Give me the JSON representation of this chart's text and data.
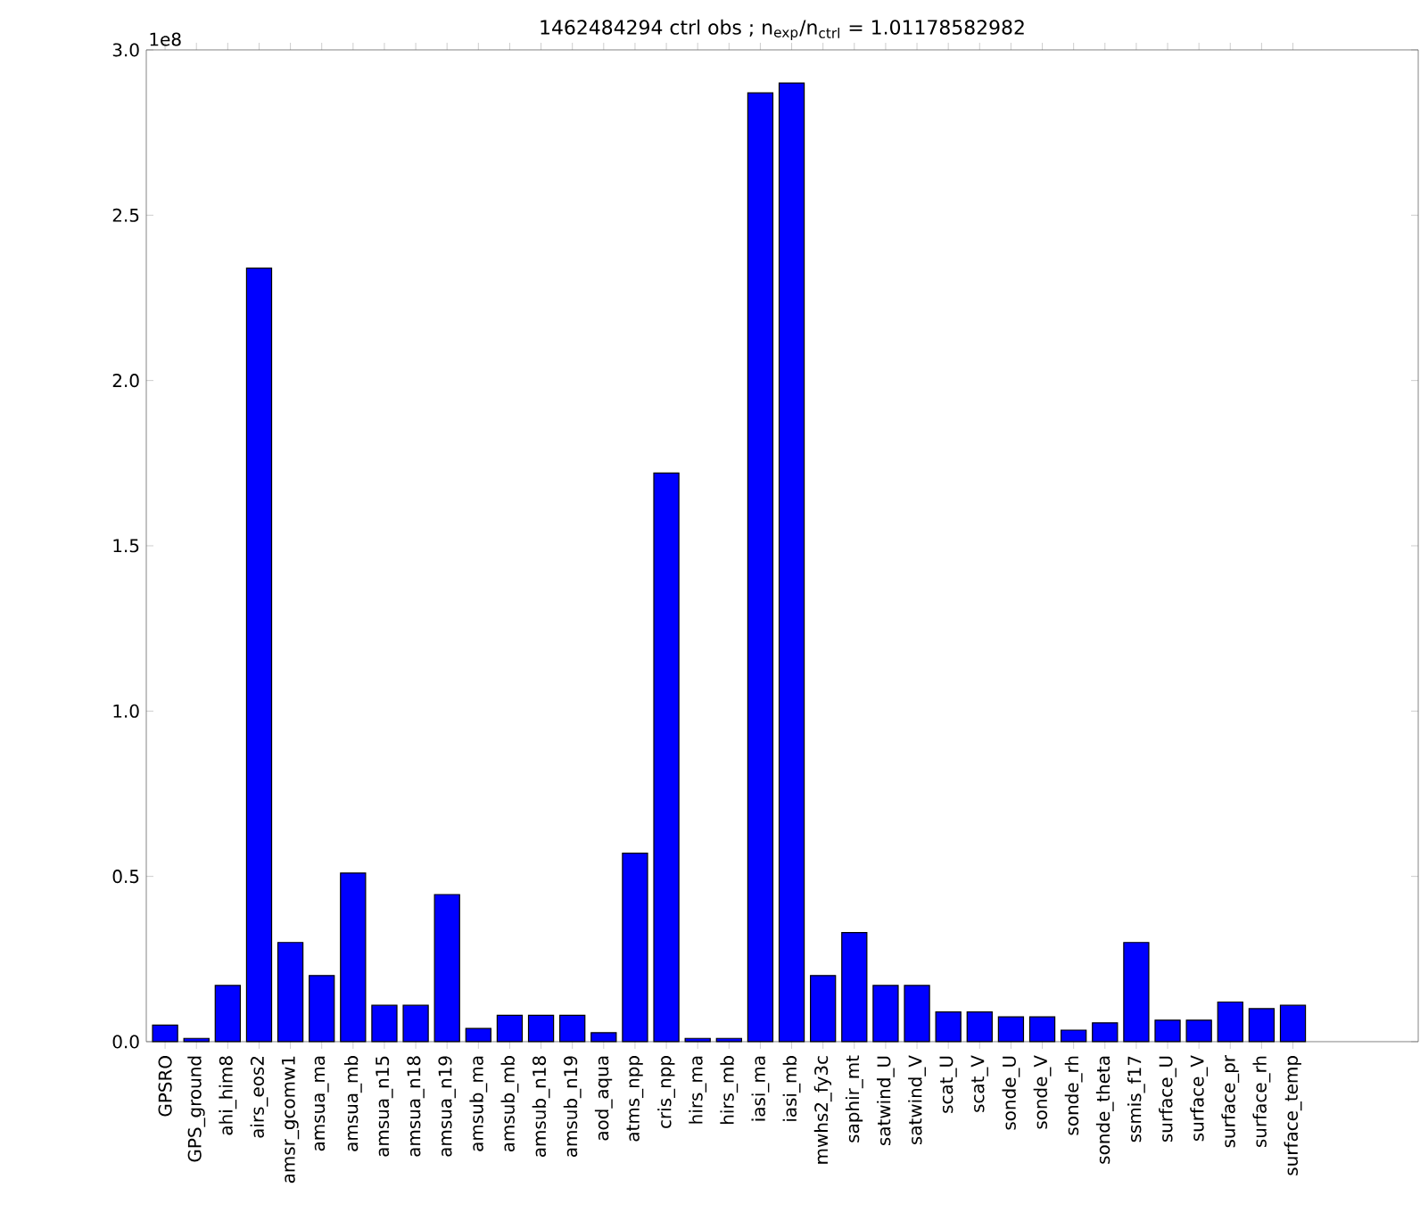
{
  "chart_data": {
    "type": "bar",
    "title": "1462484294 ctrl obs ; n$_{exp}$/n$_{ctrl}$ = 1.01178582982",
    "annotations": [
      "1e8"
    ],
    "categories": [
      "GPSRO",
      "GPS_ground",
      "ahi_him8",
      "airs_eos2",
      "amsr_gcomw1",
      "amsua_ma",
      "amsua_mb",
      "amsua_n15",
      "amsua_n18",
      "amsua_n19",
      "amsub_ma",
      "amsub_mb",
      "amsub_n18",
      "amsub_n19",
      "aod_aqua",
      "atms_npp",
      "cris_npp",
      "hirs_ma",
      "hirs_mb",
      "iasi_ma",
      "iasi_mb",
      "mwhs2_fy3c",
      "saphir_mt",
      "satwind_U",
      "satwind_V",
      "scat_U",
      "scat_V",
      "sonde_U",
      "sonde_V",
      "sonde_rh",
      "sonde_theta",
      "ssmis_f17",
      "surface_U",
      "surface_V",
      "surface_pr",
      "surface_rh",
      "surface_temp"
    ],
    "values": [
      0.05,
      0.01,
      0.17,
      2.34,
      0.3,
      0.2,
      0.51,
      0.11,
      0.11,
      0.445,
      0.04,
      0.08,
      0.08,
      0.08,
      0.027,
      0.57,
      1.72,
      0.01,
      0.01,
      2.87,
      2.9,
      0.2,
      0.33,
      0.17,
      0.17,
      0.09,
      0.09,
      0.075,
      0.075,
      0.035,
      0.057,
      0.3,
      0.065,
      0.065,
      0.12,
      0.1,
      0.11
    ],
    "color": "#0000ff",
    "ylim": [
      0,
      3.0
    ],
    "yticks": [
      {
        "value": 0,
        "label": "0.0"
      },
      {
        "value": 0.5,
        "label": "0.5"
      },
      {
        "value": 1.0,
        "label": "1.0"
      },
      {
        "value": 1.5,
        "label": "1.5"
      },
      {
        "value": 2.0,
        "label": "2.0"
      },
      {
        "value": 2.5,
        "label": "2.5"
      },
      {
        "value": 3.0,
        "label": "3.0"
      }
    ],
    "grid": false
  }
}
